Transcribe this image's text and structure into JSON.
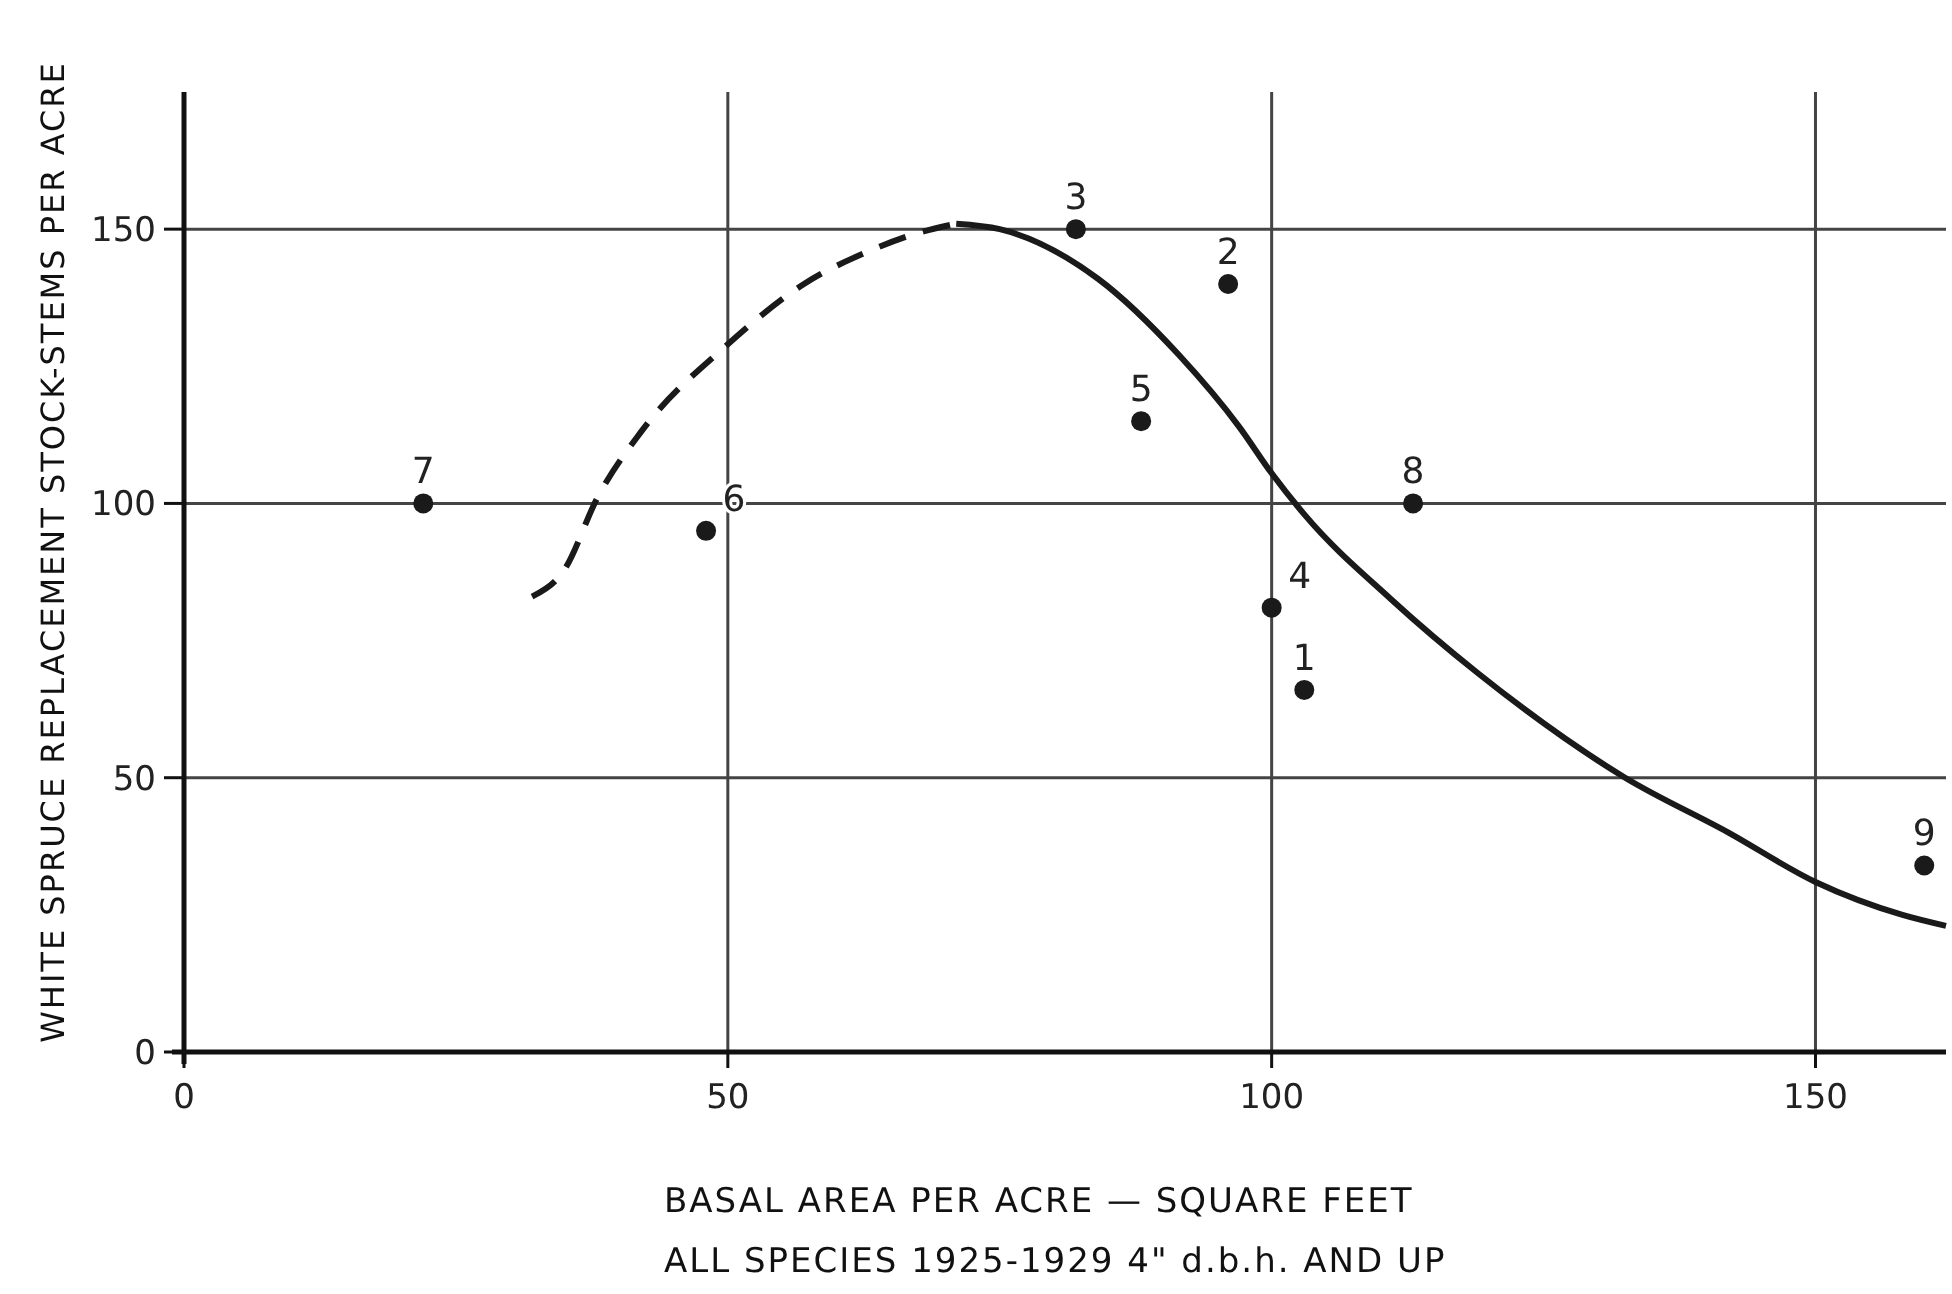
{
  "chart_data": {
    "type": "scatter",
    "xlabel": "BASAL AREA PER ACRE — SQUARE FEET\nALL SPECIES 1925-1929 4\" d.b.h. AND UP",
    "ylabel": "WHITE SPRUCE REPLACEMENT STOCK-STEMS PER ACRE",
    "xlim": [
      0,
      162
    ],
    "ylim": [
      0,
      175
    ],
    "xticks": [
      0,
      50,
      100,
      150
    ],
    "yticks": [
      0,
      50,
      100,
      150
    ],
    "grid": true,
    "series": [
      {
        "color": "#1a1a1a",
        "marker": "circle",
        "x": [
          103,
          96,
          82,
          100,
          88,
          48,
          22,
          113,
          160
        ],
        "values": [
          66,
          140,
          150,
          81,
          115,
          95,
          100,
          100,
          34
        ]
      },
      {
        "type": "line",
        "color": "#1a1a1a",
        "line_style": "dashed",
        "x": [
          32,
          35,
          38,
          42,
          50,
          57,
          63,
          67,
          71
        ],
        "values": [
          83,
          88,
          101,
          113,
          129,
          140,
          146,
          149,
          151
        ]
      },
      {
        "type": "line",
        "color": "#1a1a1a",
        "line_style": "solid",
        "x": [
          71,
          75,
          84,
          91.5,
          97,
          100,
          103,
          111,
          119,
          132.5,
          142,
          150,
          158,
          162
        ],
        "values": [
          151,
          150,
          141,
          127,
          114,
          105.5,
          98,
          82.5,
          69,
          50,
          40,
          31,
          25,
          23
        ]
      }
    ],
    "annotations": [
      {
        "text": "1",
        "x": 103,
        "y": 66
      },
      {
        "text": "2",
        "x": 96,
        "y": 140
      },
      {
        "text": "3",
        "x": 82,
        "y": 150
      },
      {
        "text": "4",
        "x": 100,
        "y": 81
      },
      {
        "text": "5",
        "x": 88,
        "y": 115
      },
      {
        "text": "6",
        "x": 48,
        "y": 95
      },
      {
        "text": "7",
        "x": 22,
        "y": 100
      },
      {
        "text": "8",
        "x": 113,
        "y": 100
      },
      {
        "text": "9",
        "x": 160,
        "y": 34
      }
    ]
  }
}
